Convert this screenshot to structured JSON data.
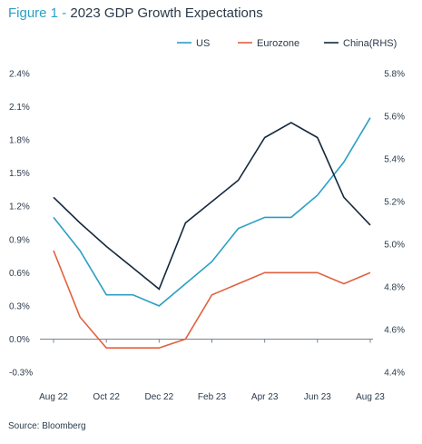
{
  "figure": {
    "number": "Figure 1",
    "separator": " - ",
    "title": "2023 GDP Growth Expectations"
  },
  "source": "Source: Bloomberg",
  "chart_data": {
    "type": "line",
    "x": [
      "Aug 22",
      "Sep 22",
      "Oct 22",
      "Nov 22",
      "Dec 22",
      "Jan 23",
      "Feb 23",
      "Mar 23",
      "Apr 23",
      "May 23",
      "Jun 23",
      "Jul 23",
      "Aug 23"
    ],
    "x_tick_labels": [
      "Aug 22",
      "Oct 22",
      "Dec 22",
      "Feb 23",
      "Apr 23",
      "Jun 23",
      "Aug 23"
    ],
    "y_left": {
      "range": [
        -0.3,
        2.4
      ],
      "ticks": [
        -0.3,
        0.0,
        0.3,
        0.6,
        0.9,
        1.2,
        1.5,
        1.8,
        2.1,
        2.4
      ],
      "tick_labels": [
        "-0.3%",
        "0.0%",
        "0.3%",
        "0.6%",
        "0.9%",
        "1.2%",
        "1.5%",
        "1.8%",
        "2.1%",
        "2.4%"
      ]
    },
    "y_right": {
      "range": [
        4.4,
        5.8
      ],
      "ticks": [
        4.4,
        4.6,
        4.8,
        5.0,
        5.2,
        5.4,
        5.6,
        5.8
      ],
      "tick_labels": [
        "4.4%",
        "4.6%",
        "4.8%",
        "5.0%",
        "5.2%",
        "5.4%",
        "5.6%",
        "5.8%"
      ]
    },
    "legend_position": "top-right",
    "grid": false,
    "series": [
      {
        "name": "US",
        "axis": "left",
        "color": "#2a9fc4",
        "values": [
          1.1,
          0.8,
          0.4,
          0.4,
          0.3,
          0.5,
          0.7,
          1.0,
          1.1,
          1.1,
          1.3,
          1.6,
          2.0
        ]
      },
      {
        "name": "Eurozone",
        "axis": "left",
        "color": "#e0613f",
        "values": [
          0.8,
          0.2,
          -0.08,
          -0.08,
          -0.08,
          0.0,
          0.4,
          0.5,
          0.6,
          0.6,
          0.6,
          0.5,
          0.6
        ]
      },
      {
        "name": "China(RHS)",
        "axis": "right",
        "color": "#14293d",
        "values": [
          5.22,
          5.1,
          4.99,
          4.89,
          4.79,
          5.1,
          5.2,
          5.3,
          5.5,
          5.57,
          5.5,
          5.22,
          5.09
        ]
      }
    ]
  }
}
